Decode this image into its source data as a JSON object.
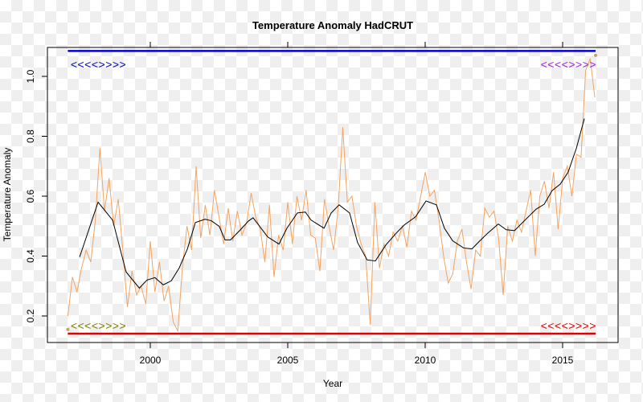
{
  "chart_data": {
    "type": "line",
    "title": "Temperature Anomaly HadCRUT",
    "xlabel": "Year",
    "ylabel": "Temperature Anomaly",
    "xlim": [
      1996.6,
      2016.9
    ],
    "ylim": [
      0.12,
      1.1
    ],
    "xticks": [
      2000,
      2005,
      2010,
      2015
    ],
    "xtick_labels": [
      "2000",
      "2005",
      "2010",
      "2015"
    ],
    "yticks": [
      0.2,
      0.4,
      0.6,
      0.8,
      1.0
    ],
    "ytick_labels": [
      "0.2",
      "0.4",
      "0.6",
      "0.8",
      "1.0"
    ],
    "grid": false,
    "series": [
      {
        "name": "monthly anomaly",
        "color": "#f4a460",
        "x_start": 1997.0,
        "x_step": 0.1667,
        "values": [
          0.2,
          0.33,
          0.28,
          0.36,
          0.42,
          0.38,
          0.52,
          0.76,
          0.55,
          0.66,
          0.5,
          0.59,
          0.42,
          0.23,
          0.35,
          0.27,
          0.3,
          0.24,
          0.45,
          0.28,
          0.38,
          0.25,
          0.3,
          0.18,
          0.15,
          0.36,
          0.5,
          0.42,
          0.7,
          0.46,
          0.57,
          0.47,
          0.62,
          0.53,
          0.44,
          0.56,
          0.45,
          0.55,
          0.47,
          0.51,
          0.61,
          0.53,
          0.49,
          0.38,
          0.57,
          0.33,
          0.47,
          0.42,
          0.58,
          0.44,
          0.6,
          0.52,
          0.62,
          0.47,
          0.46,
          0.35,
          0.59,
          0.5,
          0.42,
          0.56,
          0.83,
          0.58,
          0.6,
          0.5,
          0.44,
          0.4,
          0.17,
          0.58,
          0.36,
          0.44,
          0.4,
          0.48,
          0.45,
          0.5,
          0.43,
          0.55,
          0.52,
          0.6,
          0.68,
          0.6,
          0.62,
          0.52,
          0.4,
          0.31,
          0.34,
          0.45,
          0.49,
          0.38,
          0.29,
          0.42,
          0.4,
          0.56,
          0.53,
          0.55,
          0.46,
          0.27,
          0.5,
          0.45,
          0.52,
          0.48,
          0.55,
          0.62,
          0.4,
          0.6,
          0.65,
          0.56,
          0.68,
          0.49,
          0.66,
          0.7,
          0.6,
          0.74,
          0.73,
          1.02,
          1.06,
          0.93
        ]
      },
      {
        "name": "smoothed",
        "color": "#000000",
        "x": [
          1997.43,
          1998.1,
          1998.63,
          1999.12,
          1999.6,
          1999.88,
          2000.17,
          2000.47,
          2000.76,
          2001.05,
          2001.35,
          2001.64,
          2001.99,
          2002.22,
          2002.51,
          2002.72,
          2002.92,
          2003.3,
          2003.57,
          2003.74,
          2004.27,
          2004.68,
          2004.97,
          2005.35,
          2005.64,
          2005.85,
          2006.32,
          2006.58,
          2006.87,
          2007.25,
          2007.54,
          2007.89,
          2008.19,
          2008.57,
          2008.95,
          2009.24,
          2009.65,
          2010.03,
          2010.41,
          2010.7,
          2011.0,
          2011.4,
          2011.7,
          2011.99,
          2012.28,
          2012.66,
          2012.95,
          2013.25,
          2013.63,
          2014.04,
          2014.33,
          2014.62,
          2014.91,
          2015.2,
          2015.5,
          2015.79
        ],
        "values": [
          0.397,
          0.58,
          0.52,
          0.347,
          0.293,
          0.32,
          0.328,
          0.304,
          0.317,
          0.36,
          0.424,
          0.512,
          0.523,
          0.518,
          0.499,
          0.454,
          0.454,
          0.49,
          0.517,
          0.528,
          0.464,
          0.44,
          0.493,
          0.544,
          0.547,
          0.52,
          0.493,
          0.544,
          0.571,
          0.544,
          0.445,
          0.387,
          0.384,
          0.437,
          0.477,
          0.504,
          0.531,
          0.584,
          0.571,
          0.493,
          0.451,
          0.427,
          0.424,
          0.451,
          0.477,
          0.507,
          0.488,
          0.485,
          0.52,
          0.557,
          0.573,
          0.619,
          0.64,
          0.68,
          0.76,
          0.859
        ]
      }
    ],
    "hlines": [
      {
        "name": "upper",
        "y": 1.085,
        "x_range": [
          1997.0,
          2016.2
        ],
        "color": "#0000cc"
      },
      {
        "name": "lower",
        "y": 0.141,
        "x_range": [
          1997.0,
          2016.2
        ],
        "color": "#e00000"
      }
    ],
    "points": [
      {
        "x": 1997.0,
        "y": 0.155,
        "color": "#c8a060"
      },
      {
        "x": 2016.2,
        "y": 1.07,
        "color": "#c8a060"
      }
    ],
    "annotations": [
      {
        "name": "top-left",
        "text": "<<<<>>>>",
        "x": 1997.1,
        "y": 1.04,
        "color": "#0000cc"
      },
      {
        "name": "top-right",
        "text": "<<<<>>>>",
        "x": 2014.2,
        "y": 1.04,
        "color": "#a020f0"
      },
      {
        "name": "bottom-left",
        "text": "<<<<>>>>",
        "x": 1997.1,
        "y": 0.168,
        "color": "#808000"
      },
      {
        "name": "bottom-right",
        "text": "<<<<>>>>",
        "x": 2014.2,
        "y": 0.168,
        "color": "#e00000"
      }
    ]
  }
}
